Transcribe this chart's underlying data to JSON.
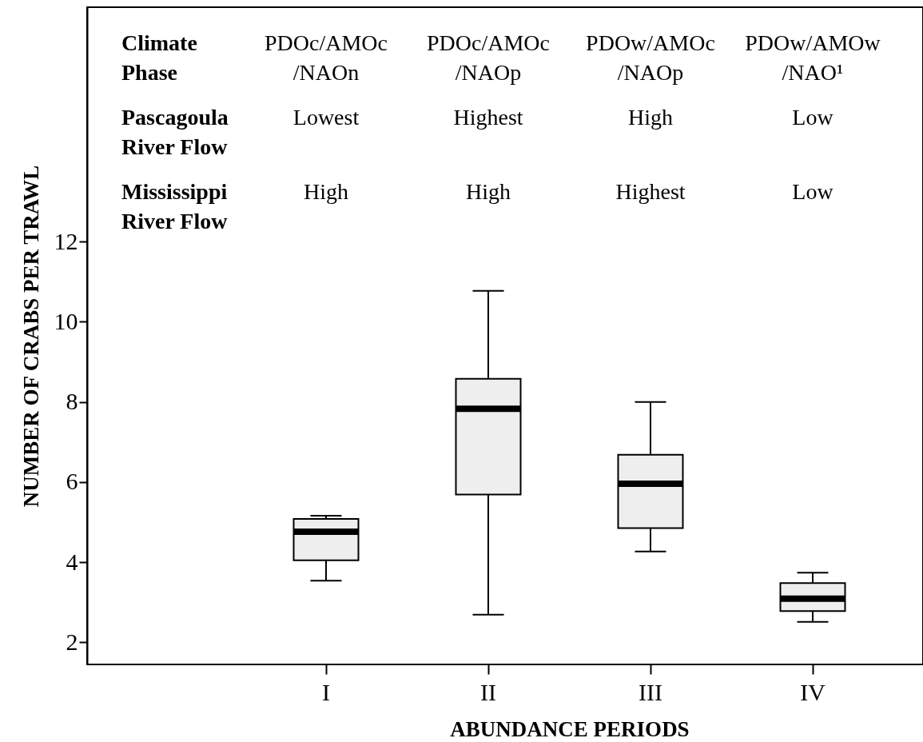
{
  "chart_data": {
    "type": "box",
    "xlabel": "ABUNDANCE PERIODS",
    "ylabel": "NUMBER OF CRABS PER TRAWL",
    "categories": [
      "I",
      "II",
      "III",
      "IV"
    ],
    "color": "#eeeeee",
    "boxes": [
      {
        "low": 3.54,
        "q1": 4.05,
        "median": 4.76,
        "q3": 5.08,
        "high": 5.16
      },
      {
        "low": 2.69,
        "q1": 5.69,
        "median": 7.83,
        "q3": 8.58,
        "high": 10.77
      },
      {
        "low": 4.27,
        "q1": 4.85,
        "median": 5.96,
        "q3": 6.68,
        "high": 8.0
      },
      {
        "low": 2.51,
        "q1": 2.78,
        "median": 3.09,
        "q3": 3.48,
        "high": 3.74
      }
    ],
    "ylim": [
      1.45,
      17.85
    ],
    "yticks": [
      2,
      4,
      6,
      8,
      10,
      12
    ],
    "annotations": [
      "Climate\nPhase",
      "PDOc/AMOc\n/NAOn",
      "PDOc/AMOc\n/NAOp",
      "PDOw/AMOc\n/NAOp",
      "PDOw/AMOw\n/NAO¹",
      "Pascagoula\nRiver Flow",
      "Lowest",
      "Highest",
      "High",
      "Low",
      "Mississippi\nRiver Flow",
      "High",
      "High",
      "Highest",
      "Low"
    ]
  }
}
